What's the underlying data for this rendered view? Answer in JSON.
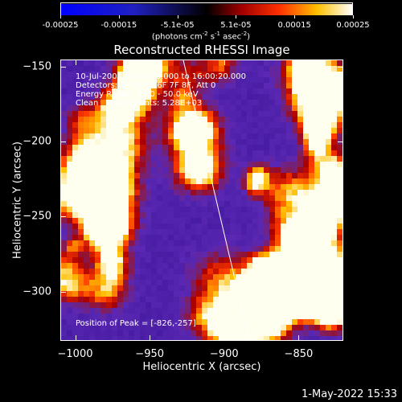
{
  "colorbar": {
    "ticks": [
      "-0.00025",
      "-0.00015",
      "-5.1e-05",
      "5.1e-05",
      "0.00015",
      "0.00025"
    ],
    "units_main": "(photons cm",
    "units_exp1": "-2",
    "units_mid1": " s",
    "units_exp2": "-1",
    "units_mid2": " asec",
    "units_exp3": "-2",
    "units_end": ")",
    "range": [
      -0.00025,
      0.00025
    ]
  },
  "title": "Reconstructed RHESSI Image",
  "info": {
    "line1": "10-Jul-2004 15:54:20.000 to 16:00:20.000",
    "line2": "Detectors: 3F 4F 5F 6F 7F 8F, Att 0",
    "line3": "Energy Range: 25.0 - 50.0 keV",
    "line4": "Clean    Total counts: 5.28E+03"
  },
  "peak": "Position of Peak = [-826,-257]",
  "axes": {
    "xlabel": "Heliocentric X (arcsec)",
    "ylabel": "Heliocentric Y (arcsec)",
    "xticks": [
      "-1000",
      "-950",
      "-900",
      "-850"
    ],
    "yticks": [
      "-150",
      "-200",
      "-250",
      "-300"
    ],
    "xlim": [
      -1010,
      -820
    ],
    "ylim": [
      -333,
      -145
    ]
  },
  "date": "1-May-2022 15:33",
  "colors": {
    "background": "#000000",
    "low": "#4a1aa0",
    "high": "#ffffff"
  }
}
